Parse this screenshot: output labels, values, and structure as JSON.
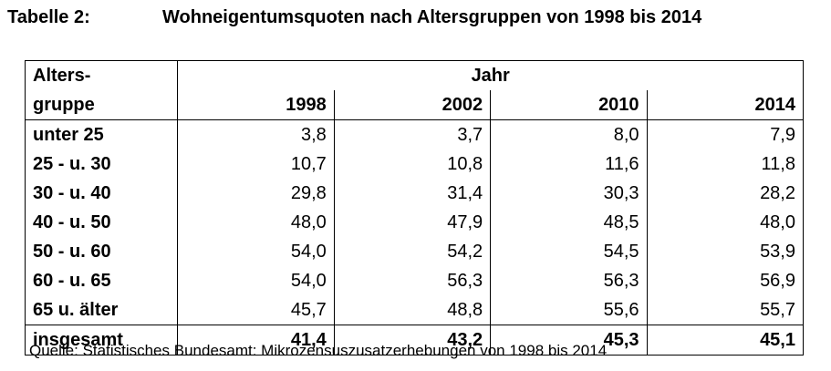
{
  "caption": {
    "label": "Tabelle 2:",
    "title": "Wohneigentumsquoten nach Altersgruppen von 1998 bis 2014"
  },
  "table": {
    "corner_line1": "Alters-",
    "corner_line2": "gruppe",
    "group_header": "Jahr",
    "years": [
      "1998",
      "2002",
      "2010",
      "2014"
    ],
    "rows": [
      {
        "label": "unter 25",
        "values": [
          "3,8",
          "3,7",
          "8,0",
          "7,9"
        ]
      },
      {
        "label": "25 - u. 30",
        "values": [
          "10,7",
          "10,8",
          "11,6",
          "11,8"
        ]
      },
      {
        "label": "30 - u. 40",
        "values": [
          "29,8",
          "31,4",
          "30,3",
          "28,2"
        ]
      },
      {
        "label": "40 - u. 50",
        "values": [
          "48,0",
          "47,9",
          "48,5",
          "48,0"
        ]
      },
      {
        "label": "50 - u. 60",
        "values": [
          "54,0",
          "54,2",
          "54,5",
          "53,9"
        ]
      },
      {
        "label": "60 - u. 65",
        "values": [
          "54,0",
          "56,3",
          "56,3",
          "56,9"
        ]
      },
      {
        "label": "65 u. älter",
        "values": [
          "45,7",
          "48,8",
          "55,6",
          "55,7"
        ]
      }
    ],
    "total": {
      "label": "insgesamt",
      "values": [
        "41,4",
        "43,2",
        "45,3",
        "45,1"
      ]
    }
  },
  "source": "Quelle: Statistisches Bundesamt: Mikrozensuszusatzerhebungen von 1998 bis 2014"
}
